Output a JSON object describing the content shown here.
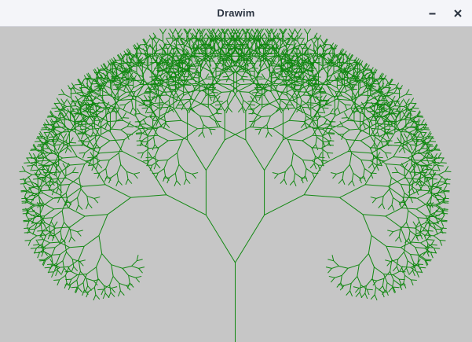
{
  "window": {
    "title": "Drawim",
    "controls": [
      {
        "name": "minimize-button",
        "icon": "minimize-icon"
      },
      {
        "name": "close-button",
        "icon": "close-icon"
      }
    ]
  },
  "canvas": {
    "background_color": "#c6c6c6",
    "drawing": "fractal-tree",
    "stroke_color": "#118811"
  }
}
